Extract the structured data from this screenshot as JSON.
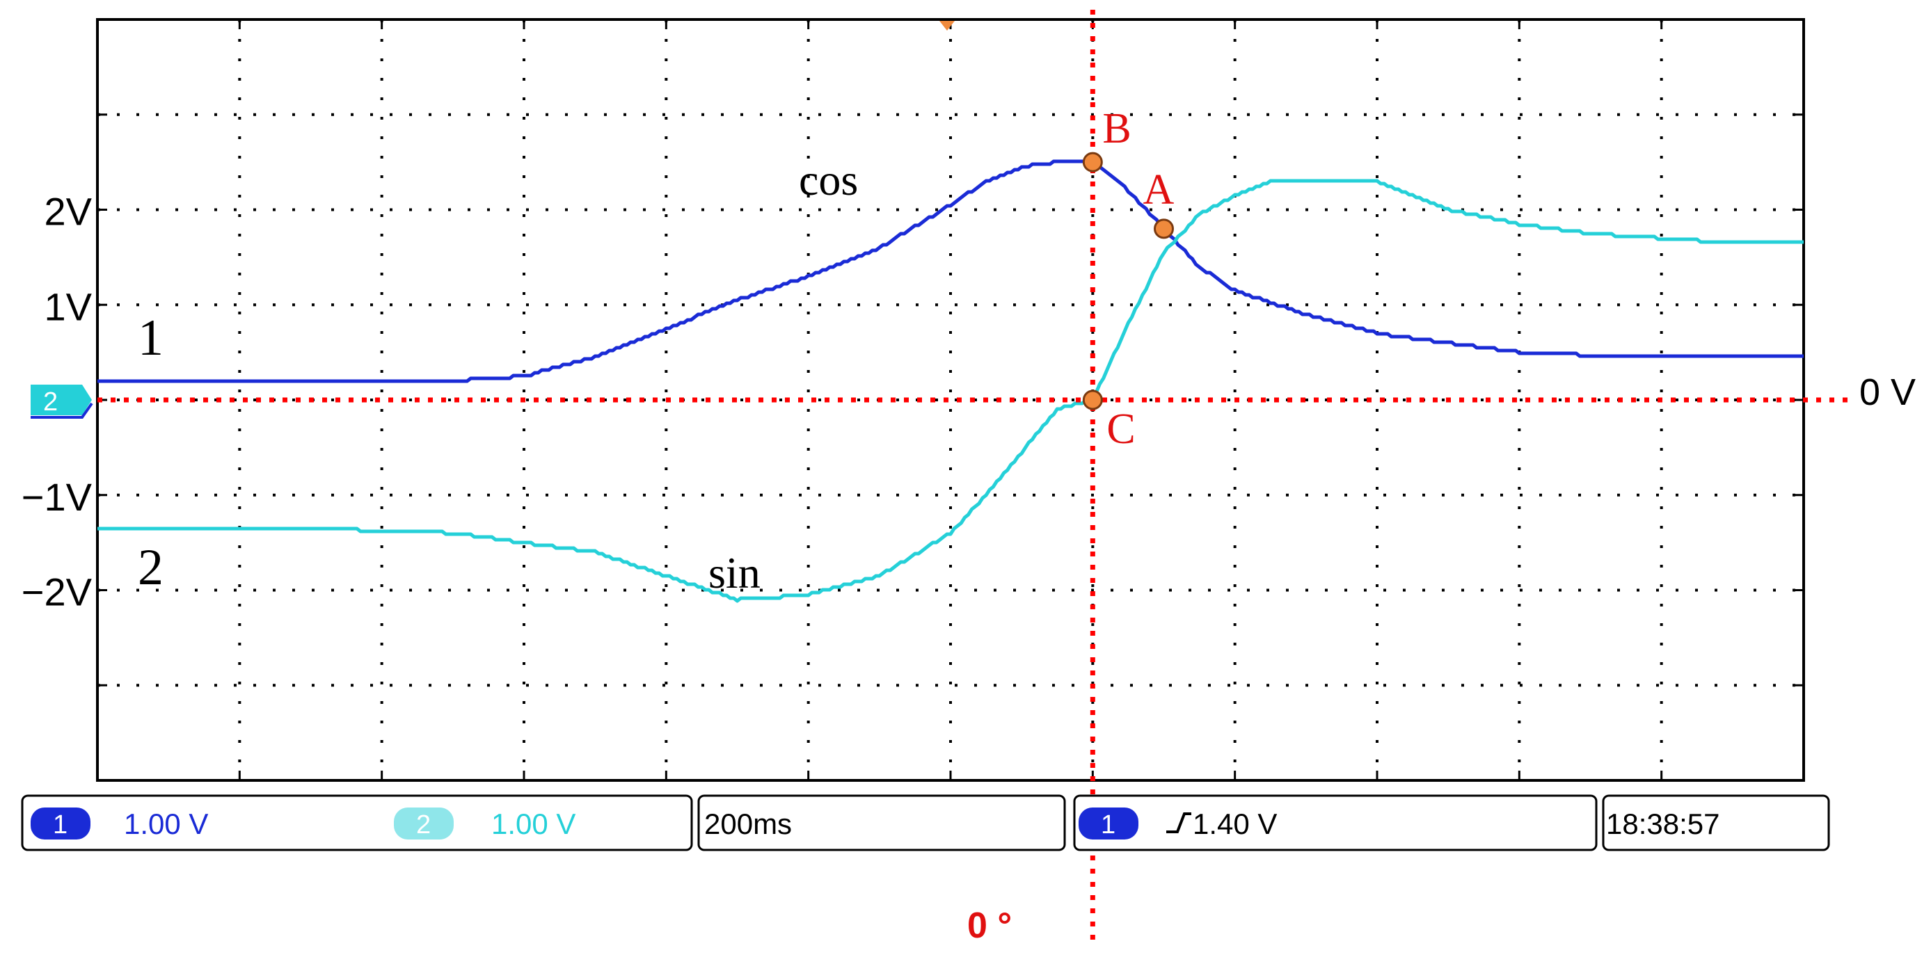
{
  "colors": {
    "ch1": "#1a2bd6",
    "ch2": "#25d0d8",
    "marker": "#ff0000",
    "point_fill": "#f08a3c",
    "grid": "#000000",
    "annotation_text": "#e01010"
  },
  "chart_data": {
    "type": "line",
    "xlim": [
      -1.4,
      1.0
    ],
    "ylim": [
      -4,
      4
    ],
    "x_units_per_div": 0.2,
    "y_units_per_div": 1.0,
    "grid": true,
    "y_tick_labels": [
      {
        "value": 2,
        "label": "2V"
      },
      {
        "value": 1,
        "label": "1V"
      },
      {
        "value": -1,
        "label": "−1V"
      },
      {
        "value": -2,
        "label": "−2V"
      }
    ],
    "series": [
      {
        "name": "cos",
        "channel_label": "1",
        "color": "#1a2bd6",
        "x": [
          -1.4,
          -1.2,
          -0.9,
          -0.8,
          -0.75,
          -0.7,
          -0.6,
          -0.5,
          -0.4,
          -0.3,
          -0.2,
          -0.15,
          -0.1,
          -0.05,
          0.0,
          0.02,
          0.05,
          0.1,
          0.15,
          0.2,
          0.3,
          0.4,
          0.5,
          0.6,
          0.7,
          0.8,
          0.9,
          1.0
        ],
        "y": [
          0.2,
          0.2,
          0.2,
          0.25,
          0.35,
          0.45,
          0.75,
          1.05,
          1.3,
          1.6,
          2.05,
          2.3,
          2.45,
          2.5,
          2.5,
          2.4,
          2.2,
          1.8,
          1.4,
          1.15,
          0.9,
          0.7,
          0.6,
          0.5,
          0.47,
          0.45,
          0.45,
          0.45
        ]
      },
      {
        "name": "sin",
        "channel_label": "2",
        "color": "#25d0d8",
        "x": [
          -1.4,
          -1.1,
          -0.9,
          -0.7,
          -0.6,
          -0.5,
          -0.4,
          -0.3,
          -0.2,
          -0.15,
          -0.1,
          -0.05,
          0.0,
          0.05,
          0.1,
          0.15,
          0.2,
          0.25,
          0.3,
          0.35,
          0.4,
          0.45,
          0.5,
          0.6,
          0.7,
          0.8,
          0.9,
          1.0
        ],
        "y": [
          -1.35,
          -1.35,
          -1.4,
          -1.6,
          -1.85,
          -2.1,
          -2.05,
          -1.85,
          -1.4,
          -1.0,
          -0.55,
          -0.1,
          0.0,
          0.8,
          1.55,
          1.95,
          2.15,
          2.3,
          2.3,
          2.3,
          2.3,
          2.15,
          2.0,
          1.85,
          1.75,
          1.7,
          1.65,
          1.65
        ]
      }
    ],
    "annotations": [
      {
        "label": "B",
        "x": 0.0,
        "y": 2.5
      },
      {
        "label": "A",
        "x": 0.1,
        "y": 1.8
      },
      {
        "label": "C",
        "x": 0.0,
        "y": 0.0
      }
    ],
    "reference_lines": {
      "horizontal_label": "0 V",
      "vertical_label": "0 °"
    }
  },
  "status_bar": {
    "ch1_badge": "1",
    "ch1_scale": "1.00 V",
    "ch2_badge": "2",
    "ch2_scale": "1.00 V",
    "timebase": "200ms",
    "trigger_badge": "1",
    "trigger_level": "1.40 V",
    "clock": "18:38:57"
  },
  "left_marker": "2"
}
